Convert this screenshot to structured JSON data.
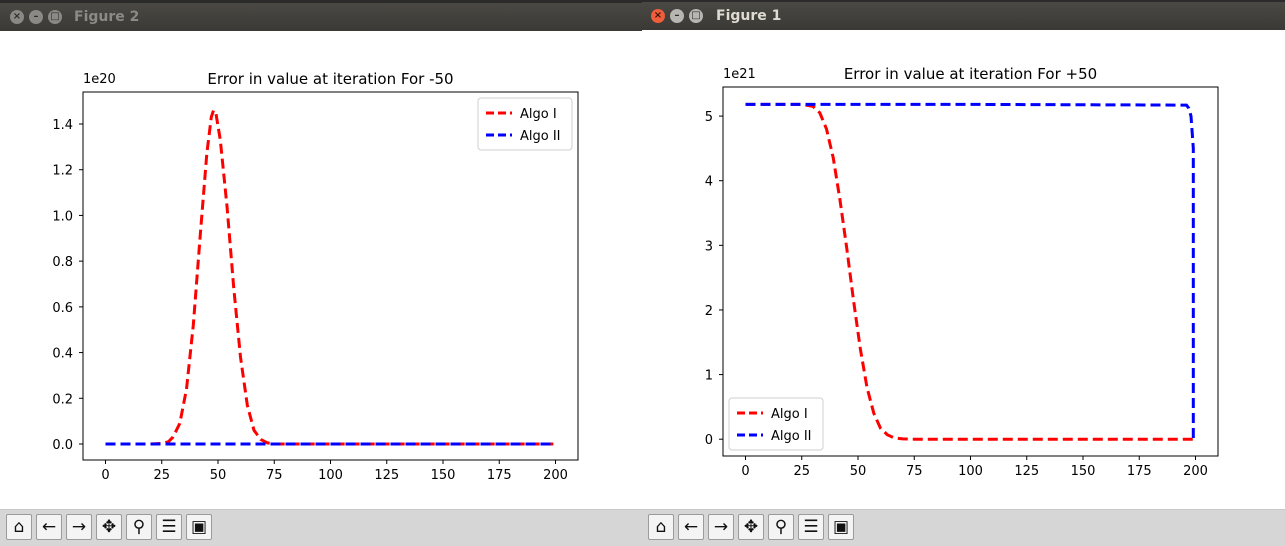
{
  "windows": [
    {
      "id": "figure2",
      "title": "Figure 2",
      "chart": {
        "type": "line",
        "title": "Error in value at iteration For -50",
        "offset_label": "1e20",
        "xlim": [
          -10,
          210
        ],
        "ylim": [
          -0.07,
          1.54
        ],
        "xticks": [
          0,
          25,
          50,
          75,
          100,
          125,
          150,
          175,
          200
        ],
        "yticks": [
          0.0,
          0.2,
          0.4,
          0.6,
          0.8,
          1.0,
          1.2,
          1.4
        ],
        "ytick_labels": [
          "0.0",
          "0.2",
          "0.4",
          "0.6",
          "0.8",
          "1.0",
          "1.2",
          "1.4"
        ],
        "legend_position": "upper right",
        "series": [
          {
            "name": "Algo I",
            "color": "#ff0000",
            "x": [
              0,
              20,
              25,
              28,
              30,
              33,
              36,
              39,
              42,
              45,
              47,
              48,
              49,
              51,
              54,
              57,
              60,
              63,
              66,
              69,
              72,
              75,
              80,
              100,
              150,
              199
            ],
            "y": [
              0,
              0,
              0.002,
              0.01,
              0.03,
              0.09,
              0.24,
              0.52,
              0.9,
              1.27,
              1.43,
              1.46,
              1.45,
              1.33,
              1.04,
              0.68,
              0.38,
              0.17,
              0.06,
              0.02,
              0.005,
              0,
              0,
              0,
              0,
              0
            ]
          },
          {
            "name": "Algo II",
            "color": "#0000ff",
            "x": [
              0,
              199
            ],
            "y": [
              0,
              0
            ]
          }
        ]
      }
    },
    {
      "id": "figure1",
      "title": "Figure 1",
      "chart": {
        "type": "line",
        "title": "Error in value at iteration For +50",
        "offset_label": "1e21",
        "xlim": [
          -10,
          210
        ],
        "ylim": [
          -0.26,
          5.45
        ],
        "xticks": [
          0,
          25,
          50,
          75,
          100,
          125,
          150,
          175,
          200
        ],
        "yticks": [
          0,
          1,
          2,
          3,
          4,
          5
        ],
        "ytick_labels": [
          "0",
          "1",
          "2",
          "3",
          "4",
          "5"
        ],
        "legend_position": "lower left",
        "series": [
          {
            "name": "Algo I",
            "color": "#ff0000",
            "x": [
              0,
              25,
              30,
              33,
              36,
              39,
              42,
              45,
              48,
              51,
              54,
              57,
              60,
              63,
              66,
              70,
              75,
              100,
              150,
              199
            ],
            "y": [
              5.18,
              5.18,
              5.15,
              5.05,
              4.8,
              4.35,
              3.7,
              2.95,
              2.15,
              1.4,
              0.8,
              0.4,
              0.17,
              0.07,
              0.02,
              0.005,
              0,
              0,
              0,
              0
            ]
          },
          {
            "name": "Algo II",
            "color": "#0000ff",
            "x": [
              0,
              100,
              196,
              197,
              198,
              199,
              199,
              199
            ],
            "y": [
              5.18,
              5.18,
              5.17,
              5.12,
              5.0,
              4.5,
              1.0,
              0
            ]
          }
        ]
      }
    }
  ],
  "toolbar": [
    "home-icon",
    "back-icon",
    "forward-icon",
    "pan-icon",
    "zoom-icon",
    "configure-subplots-icon",
    "save-icon"
  ],
  "icons": {
    "close": "×",
    "minimize": "–",
    "maximize": "□"
  }
}
